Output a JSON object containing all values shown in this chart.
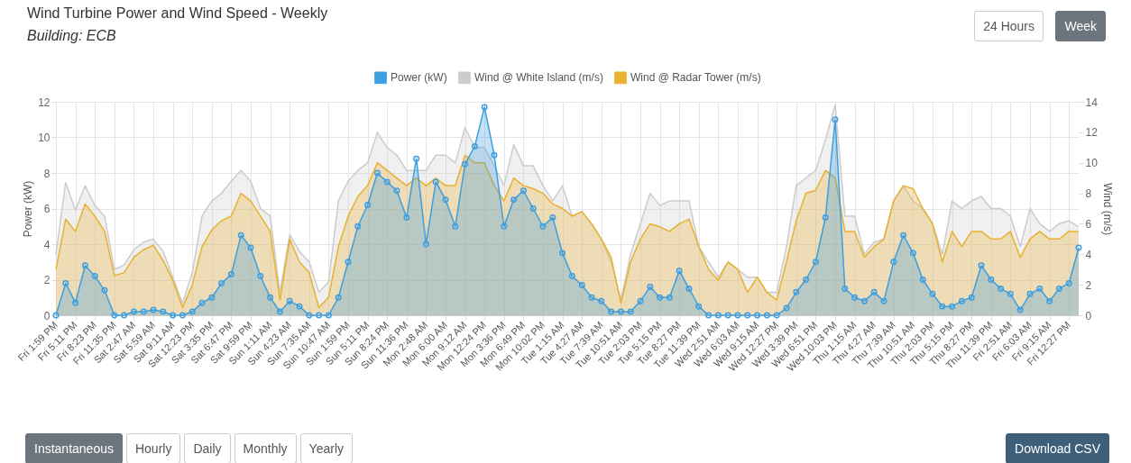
{
  "chart_data": {
    "type": "area",
    "title": "Wind Turbine Power and Wind Speed - Weekly",
    "subtitle": "Building: ECB",
    "ylabel": "Power (kW)",
    "y2label": "Wind (m/s)",
    "categories": [
      "Fri 1:59 PM",
      null,
      "Fri 5:11 PM",
      null,
      "Fri 8:23 PM",
      null,
      "Fri 11:35 PM",
      null,
      "Sat 2:47 AM",
      null,
      "Sat 5:59 AM",
      null,
      "Sat 9:11 AM",
      null,
      "Sat 12:23 PM",
      null,
      "Sat 3:35 PM",
      null,
      "Sat 6:47 PM",
      null,
      "Sat 9:59 PM",
      null,
      "Sun 1:11 AM",
      null,
      "Sun 4:23 AM",
      null,
      "Sun 7:35 AM",
      null,
      "Sun 10:47 AM",
      null,
      "Sun 1:59 PM",
      null,
      "Sun 5:11 PM",
      null,
      "Sun 8:24 PM",
      null,
      "Sun 11:36 PM",
      null,
      "Mon 2:48 AM",
      null,
      "Mon 6:00 AM",
      null,
      "Mon 9:12 AM",
      null,
      "Mon 12:24 PM",
      null,
      "Mon 3:36 PM",
      null,
      "Mon 6:49 PM",
      null,
      "Mon 10:02 PM",
      null,
      "Tue 1:15 AM",
      null,
      "Tue 4:27 AM",
      null,
      "Tue 7:39 AM",
      null,
      "Tue 10:51 AM",
      null,
      "Tue 2:03 PM",
      null,
      "Tue 5:15 PM",
      null,
      "Tue 8:27 PM",
      null,
      "Tue 11:39 PM",
      null,
      "Wed 2:51 AM",
      null,
      "Wed 6:03 AM",
      null,
      "Wed 9:15 AM",
      null,
      "Wed 12:27 PM",
      null,
      "Wed 3:39 PM",
      null,
      "Wed 6:51 PM",
      null,
      "Wed 10:03 PM",
      null,
      "Thu 1:15 AM",
      null,
      "Thu 4:27 AM",
      null,
      "Thu 7:39 AM",
      null,
      "Thu 10:51 AM",
      null,
      "Thu 2:03 PM",
      null,
      "Thu 5:15 PM",
      null,
      "Thu 8:27 PM",
      null,
      "Thu 11:39 PM",
      null,
      "Fri 2:51 AM",
      null,
      "Fri 6:03 AM",
      null,
      "Fri 9:15 AM",
      null,
      "Fri 12:27 PM",
      null
    ],
    "ylim": [
      0,
      12
    ],
    "yticks": [
      0,
      2,
      4,
      6,
      8,
      10,
      12
    ],
    "y2lim": [
      0,
      14
    ],
    "y2ticks": [
      0,
      2,
      4,
      6,
      8,
      10,
      12,
      14
    ],
    "grid": true,
    "legend": "top",
    "annotations": [
      "24 Hours",
      "Week",
      "Instantaneous",
      "Hourly",
      "Daily",
      "Monthly",
      "Yearly",
      "Download CSV"
    ],
    "series": [
      {
        "name": "Power (kW)",
        "color": "#3d9ee0",
        "marker": "circle",
        "values": [
          0,
          1.8,
          0.7,
          2.8,
          2.2,
          1.4,
          0,
          0,
          0.2,
          0.2,
          0.3,
          0.2,
          0,
          0,
          0.2,
          0.7,
          1.0,
          1.8,
          2.3,
          4.5,
          3.8,
          2.2,
          1.0,
          0.2,
          0.8,
          0.5,
          0,
          0,
          0,
          1.0,
          3.0,
          5.0,
          6.2,
          8.0,
          7.5,
          7.0,
          5.5,
          8.8,
          4.0,
          7.5,
          6.5,
          5.0,
          8.5,
          9.5,
          11.7,
          9.0,
          5.0,
          6.5,
          7.0,
          6.0,
          5.0,
          5.5,
          3.5,
          2.2,
          1.7,
          1.0,
          0.8,
          0.2,
          0.2,
          0.2,
          0.8,
          1.6,
          1.0,
          1.0,
          2.5,
          1.5,
          0.5,
          0,
          0,
          0,
          0,
          0,
          0,
          0,
          0,
          0.4,
          1.3,
          2.0,
          3.0,
          5.5,
          11.0,
          1.5,
          1.0,
          0.8,
          1.3,
          0.8,
          3.0,
          4.5,
          3.5,
          2.0,
          1.2,
          0.5,
          0.5,
          0.8,
          1.0,
          2.8,
          2.0,
          1.5,
          1.2,
          0.3,
          1.2,
          1.5,
          0.8,
          1.5,
          1.8,
          3.8
        ]
      },
      {
        "name": "Wind @ White Island (m/s)",
        "color": "#cccccc",
        "axis": "y2",
        "values": [
          4,
          8.7,
          6.9,
          8.5,
          7.2,
          6.5,
          3,
          3.3,
          4.3,
          4.8,
          5.0,
          4.2,
          2.5,
          0.8,
          2.8,
          6.5,
          7.5,
          8.0,
          8.8,
          9.5,
          8.8,
          7.0,
          6.5,
          1.5,
          5.3,
          4.2,
          3.5,
          1.5,
          2.2,
          7.5,
          8.8,
          9.5,
          10,
          12,
          11,
          10.5,
          9.5,
          9.5,
          9.5,
          10.5,
          10.5,
          10,
          12.3,
          11,
          11,
          9.8,
          8.5,
          11.2,
          9.8,
          9.8,
          8.5,
          7.5,
          8.5,
          6.5,
          6.8,
          6,
          5,
          3.5,
          1.0,
          4,
          6,
          8,
          7.2,
          7.5,
          7.5,
          7.5,
          4.5,
          3.5,
          2.5,
          3.5,
          3.0,
          2.5,
          2.5,
          1.5,
          1.5,
          4.5,
          8.5,
          9.0,
          9.5,
          11.5,
          13.8,
          6.5,
          6.5,
          4.0,
          4.8,
          5,
          7.5,
          8.5,
          7.5,
          7.0,
          6.0,
          4.0,
          7.5,
          7.0,
          7.5,
          7.8,
          7.0,
          7.0,
          6.5,
          4.5,
          7.0,
          6.0,
          5.5,
          6.0,
          6.2,
          5.8
        ]
      },
      {
        "name": "Wind @ Radar Tower (m/s)",
        "color": "#e8b130",
        "axis": "y2",
        "values": [
          3,
          6.3,
          5.5,
          7.3,
          6.5,
          5.5,
          2.6,
          2.8,
          3.8,
          4.3,
          4.6,
          3.6,
          2.3,
          0.5,
          2.0,
          4.5,
          5.6,
          6.2,
          6.5,
          8.0,
          7.5,
          6.5,
          5.5,
          1.0,
          5.0,
          3.5,
          2.8,
          0.5,
          1.2,
          4.5,
          6.5,
          7.8,
          8.5,
          10,
          9.5,
          9,
          8.5,
          9,
          8.5,
          9,
          8.5,
          8.5,
          10.5,
          10,
          10,
          8.5,
          7.5,
          9,
          8.5,
          8.3,
          8.0,
          7.3,
          7,
          6.5,
          6.8,
          6,
          5,
          3.8,
          0.8,
          3.5,
          5,
          6,
          5.8,
          5.5,
          6,
          6.3,
          4.5,
          3.0,
          2.3,
          3.5,
          3.0,
          1.5,
          2.5,
          1.5,
          1.0,
          3.5,
          6.2,
          8.0,
          8.2,
          9.5,
          9,
          5.5,
          5.5,
          3.8,
          4.5,
          5,
          7.5,
          8.5,
          8.3,
          7.0,
          6.0,
          3.5,
          5.5,
          4.5,
          5.5,
          5.5,
          5.0,
          5.0,
          5.5,
          3.8,
          5.0,
          5.5,
          5.0,
          5.0,
          5.5,
          5.5
        ]
      }
    ]
  }
}
